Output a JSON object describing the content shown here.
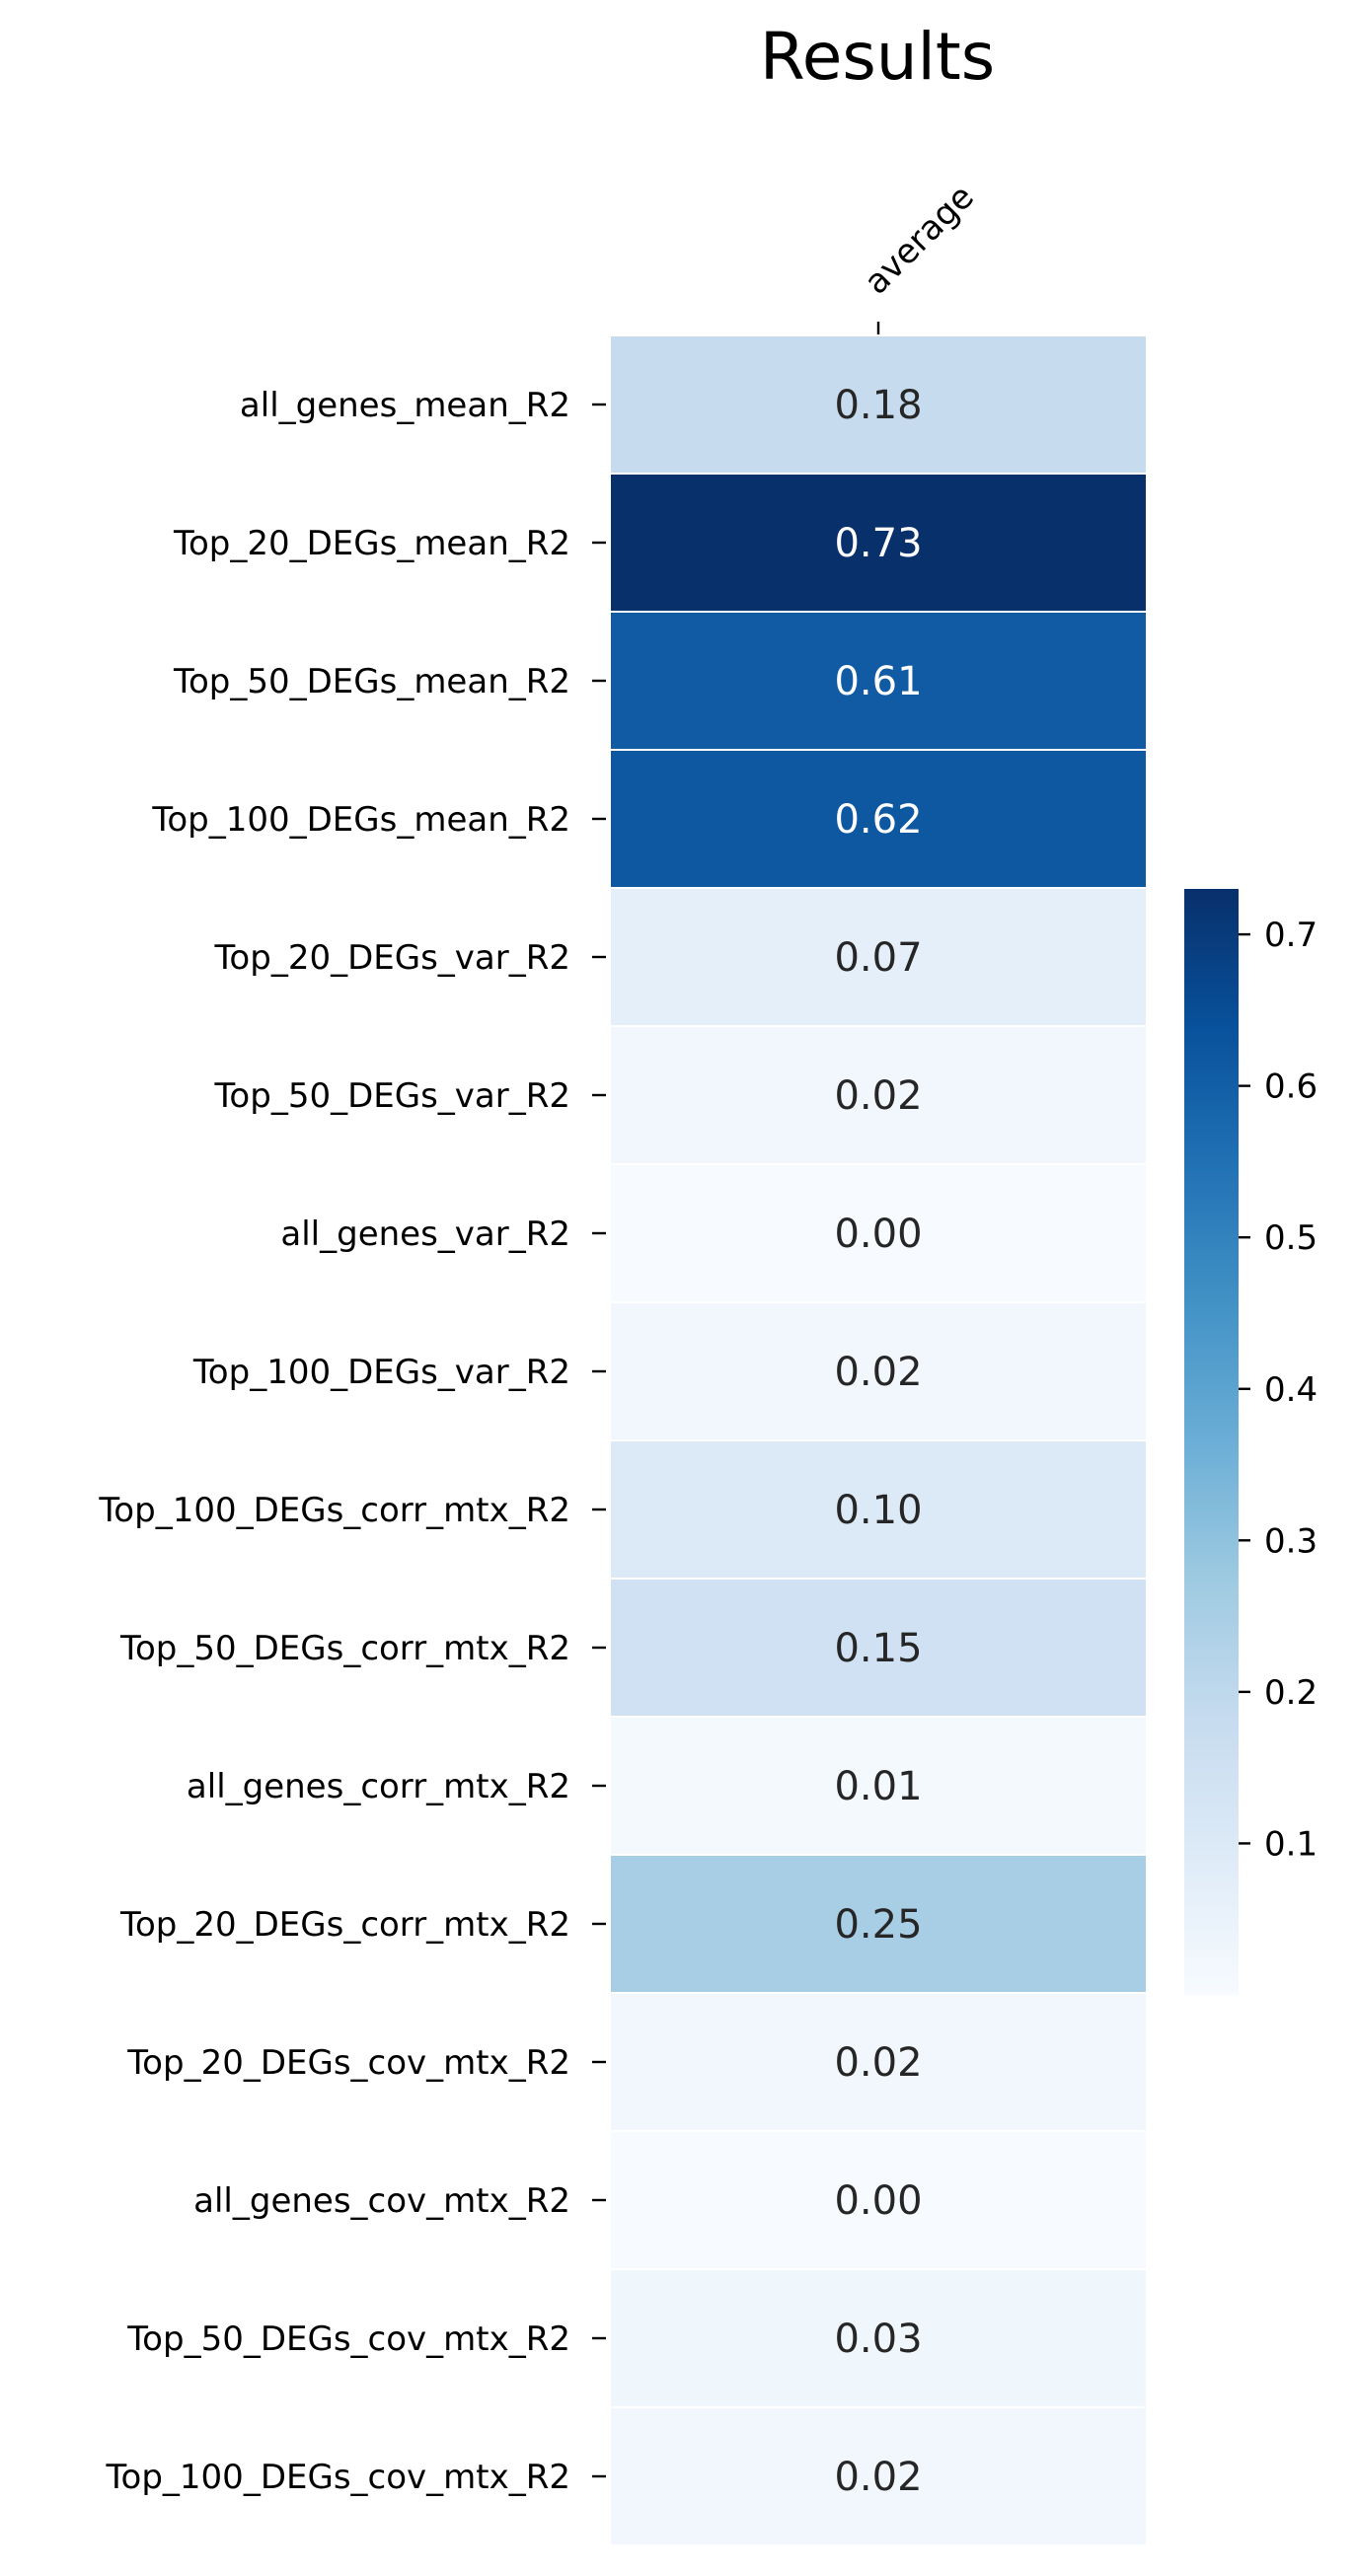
{
  "chart_data": {
    "type": "heatmap",
    "title": "Results",
    "columns": [
      "average"
    ],
    "rows": [
      "all_genes_mean_R2",
      "Top_20_DEGs_mean_R2",
      "Top_50_DEGs_mean_R2",
      "Top_100_DEGs_mean_R2",
      "Top_20_DEGs_var_R2",
      "Top_50_DEGs_var_R2",
      "all_genes_var_R2",
      "Top_100_DEGs_var_R2",
      "Top_100_DEGs_corr_mtx_R2",
      "Top_50_DEGs_corr_mtx_R2",
      "all_genes_corr_mtx_R2",
      "Top_20_DEGs_corr_mtx_R2",
      "Top_20_DEGs_cov_mtx_R2",
      "all_genes_cov_mtx_R2",
      "Top_50_DEGs_cov_mtx_R2",
      "Top_100_DEGs_cov_mtx_R2"
    ],
    "values": [
      0.18,
      0.73,
      0.61,
      0.62,
      0.07,
      0.02,
      0.0,
      0.02,
      0.1,
      0.15,
      0.01,
      0.25,
      0.02,
      0.0,
      0.03,
      0.02
    ],
    "value_labels": [
      "0.18",
      "0.73",
      "0.61",
      "0.62",
      "0.07",
      "0.02",
      "0.00",
      "0.02",
      "0.10",
      "0.15",
      "0.01",
      "0.25",
      "0.02",
      "0.00",
      "0.03",
      "0.02"
    ],
    "colormap": "Blues",
    "colorbar": {
      "range": [
        0.0,
        0.73
      ],
      "ticks": [
        0.1,
        0.2,
        0.3,
        0.4,
        0.5,
        0.6,
        0.7
      ],
      "tick_labels": [
        "0.1",
        "0.2",
        "0.3",
        "0.4",
        "0.5",
        "0.6",
        "0.7"
      ],
      "placement": "right"
    },
    "colors": {
      "low": "#f7fbff",
      "high": "#08306b",
      "dark_text": "#262626",
      "light_text": "#ffffff",
      "separator": "#ffffff"
    }
  }
}
